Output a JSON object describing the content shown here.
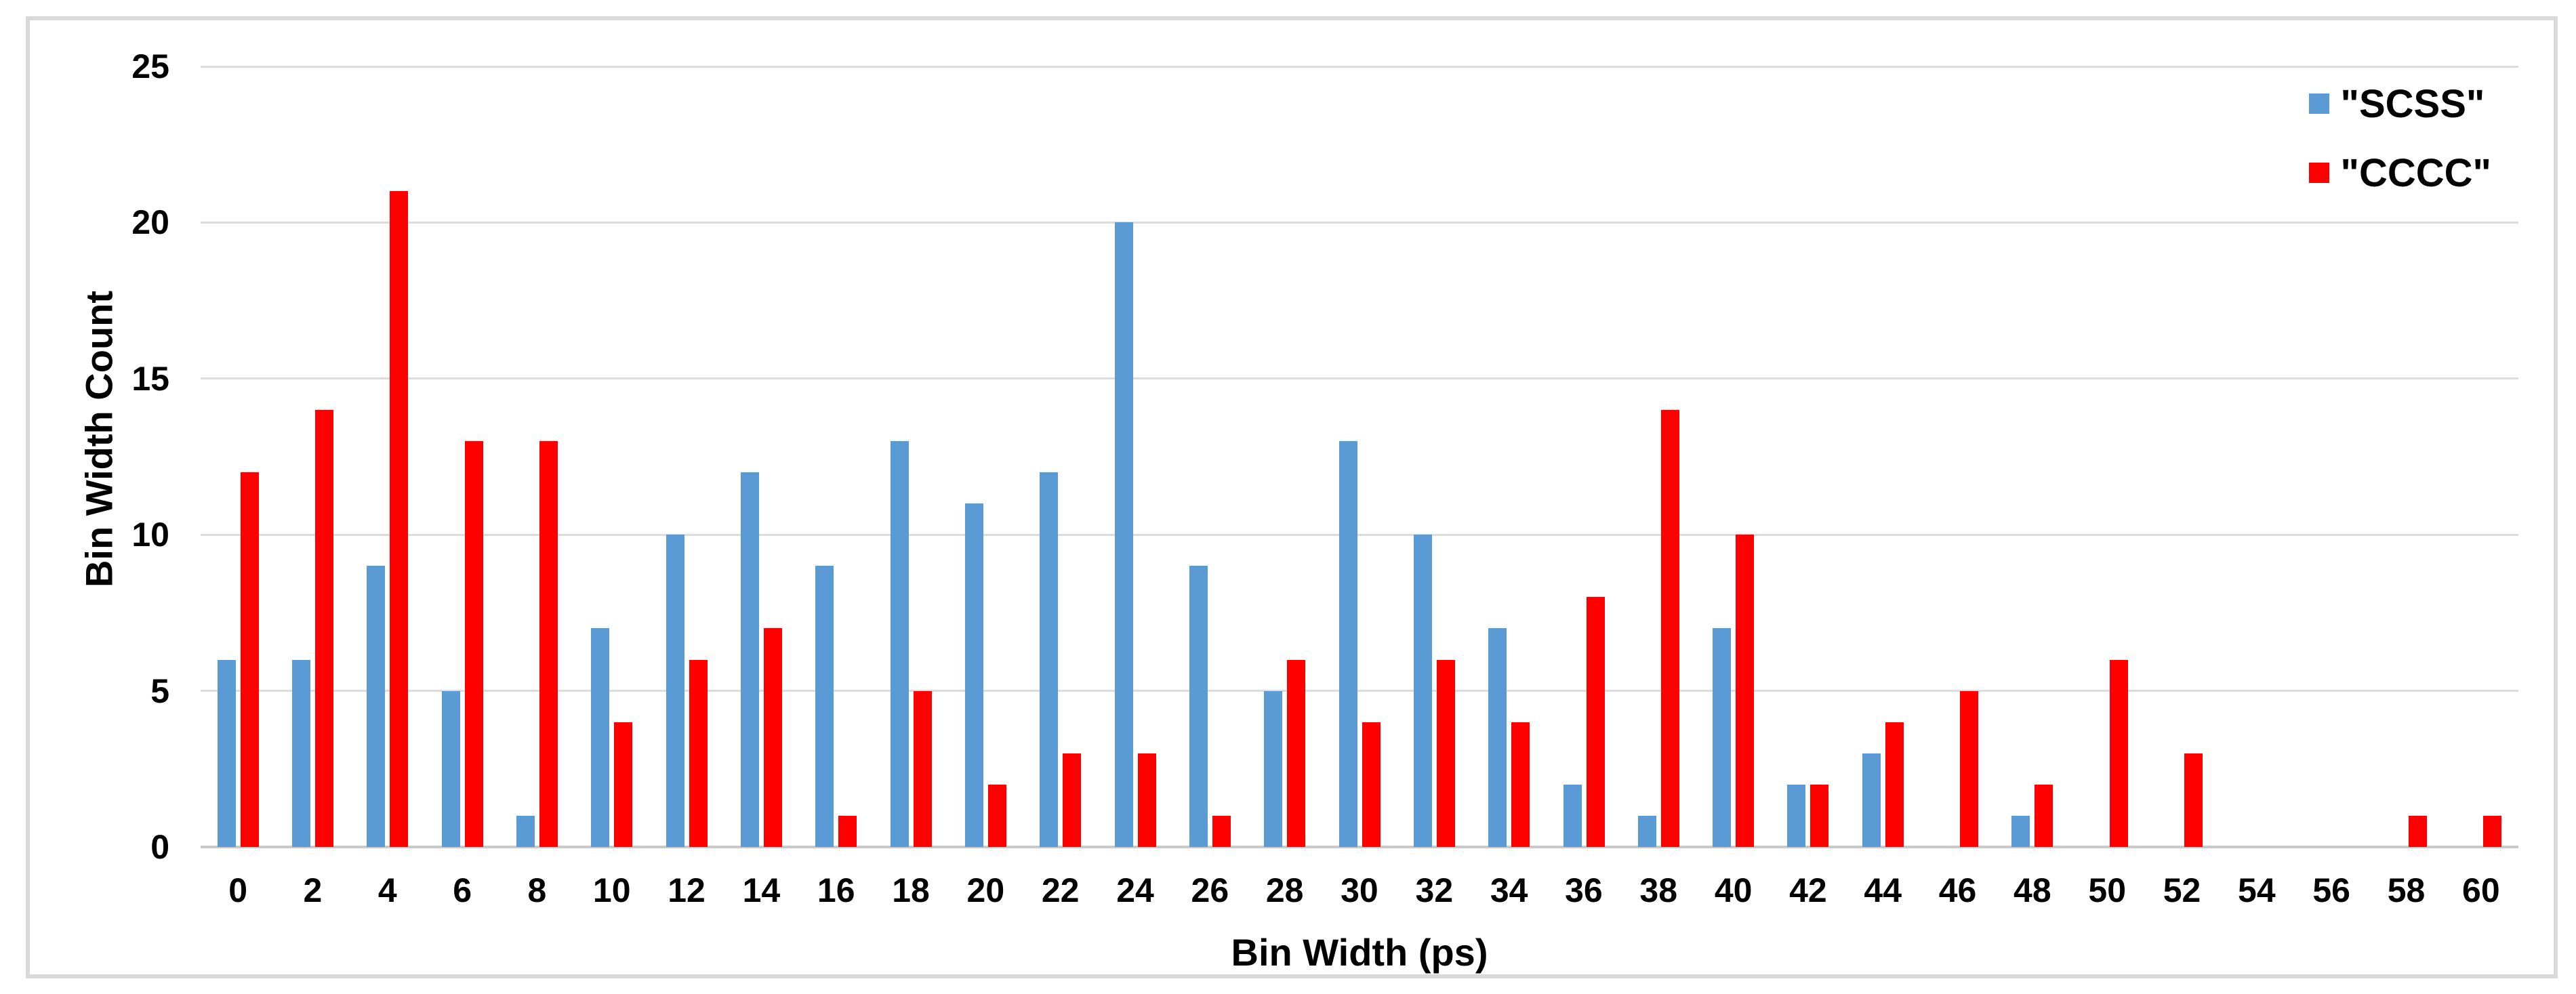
{
  "chart_data": {
    "type": "bar",
    "title": "",
    "xlabel": "Bin Width (ps)",
    "ylabel": "Bin Width Count",
    "categories": [
      0,
      2,
      4,
      6,
      8,
      10,
      12,
      14,
      16,
      18,
      20,
      22,
      24,
      26,
      28,
      30,
      32,
      34,
      36,
      38,
      40,
      42,
      44,
      46,
      48,
      50,
      52,
      54,
      56,
      58,
      60
    ],
    "series": [
      {
        "name": "\"SCSS\"",
        "color": "#5B9BD5",
        "values": [
          6,
          6,
          9,
          5,
          1,
          7,
          10,
          12,
          9,
          13,
          11,
          12,
          20,
          9,
          5,
          13,
          10,
          7,
          2,
          1,
          7,
          2,
          3,
          0,
          1,
          0,
          0,
          0,
          0,
          0,
          0
        ]
      },
      {
        "name": "\"CCCC\"",
        "color": "#FF0000",
        "values": [
          12,
          14,
          21,
          13,
          13,
          4,
          6,
          7,
          1,
          5,
          2,
          3,
          3,
          1,
          6,
          4,
          6,
          4,
          8,
          14,
          10,
          2,
          4,
          5,
          2,
          6,
          3,
          0,
          0,
          1,
          1
        ]
      }
    ],
    "ylim": [
      0,
      25
    ],
    "y_ticks": [
      0,
      5,
      10,
      15,
      20,
      25
    ],
    "grid": "horizontal",
    "legend_position": "top-right"
  },
  "colors": {
    "series_scss": "#5B9BD5",
    "series_cccc": "#FF0000",
    "gridline": "#DCDCDC",
    "axis_line": "#C9C9C9",
    "frame_border": "#D9D9D9",
    "text": "#000000",
    "background": "#FFFFFF"
  }
}
